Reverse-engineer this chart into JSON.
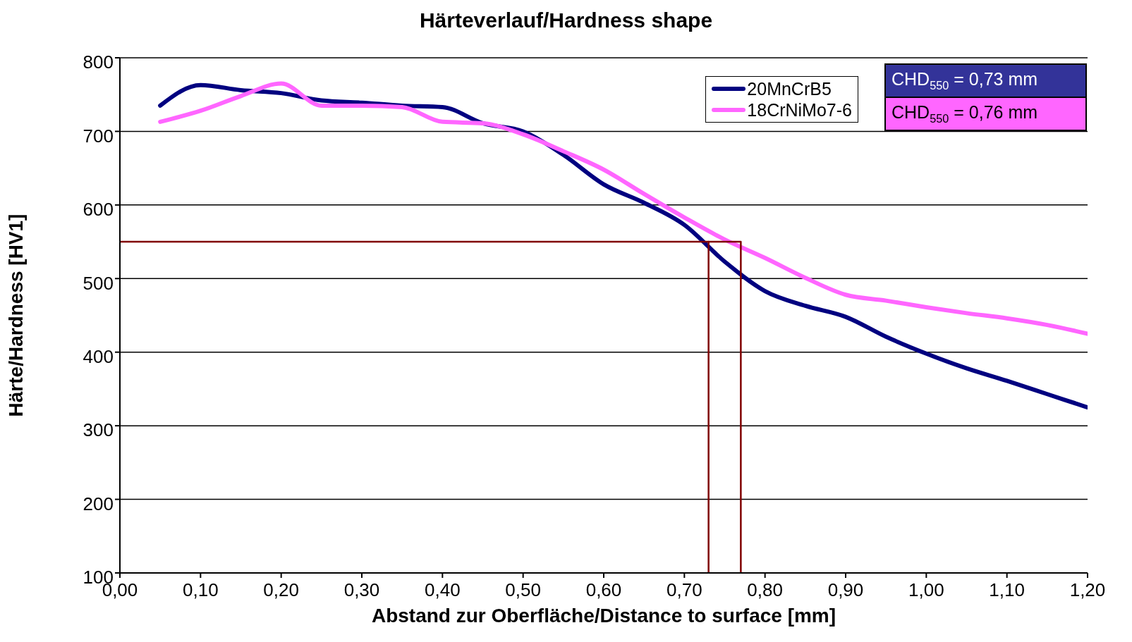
{
  "chart_data": {
    "type": "line",
    "title": "Härteverlauf/Hardness shape",
    "xlabel": "Abstand zur Oberfläche/Distance to surface [mm]",
    "ylabel": "Härte/Hardness [HV1]",
    "xlim": [
      0,
      1.2
    ],
    "xticks": [
      {
        "value": 0,
        "label": "0,00"
      },
      {
        "value": 0.1,
        "label": "0,10"
      },
      {
        "value": 0.2,
        "label": "0,20"
      },
      {
        "value": 0.3,
        "label": "0,30"
      },
      {
        "value": 0.4,
        "label": "0,40"
      },
      {
        "value": 0.5,
        "label": "0,50"
      },
      {
        "value": 0.6,
        "label": "0,60"
      },
      {
        "value": 0.7,
        "label": "0,70"
      },
      {
        "value": 0.8,
        "label": "0,80"
      },
      {
        "value": 0.9,
        "label": "0,90"
      },
      {
        "value": 1,
        "label": "1,00"
      },
      {
        "value": 1.1,
        "label": "1,10"
      },
      {
        "value": 1.2,
        "label": "1,20"
      }
    ],
    "ylim": [
      100,
      800
    ],
    "yticks": [
      100,
      200,
      300,
      400,
      500,
      600,
      700,
      800
    ],
    "grid": "y",
    "legend": "top right",
    "line_style": "solid",
    "marker": "none",
    "x": [
      0.05,
      0.1,
      0.15,
      0.2,
      0.25,
      0.3,
      0.35,
      0.4,
      0.45,
      0.5,
      0.55,
      0.6,
      0.65,
      0.7,
      0.75,
      0.8,
      0.85,
      0.9,
      0.95,
      1,
      1.05,
      1.1,
      1.15,
      1.2
    ],
    "series": [
      {
        "name": "20MnCrB5",
        "color": "#000080",
        "values": [
          735,
          763,
          756,
          752,
          742,
          739,
          735,
          733,
          711,
          700,
          668,
          628,
          603,
          573,
          523,
          483,
          463,
          448,
          421,
          398,
          378,
          361,
          343,
          325
        ]
      },
      {
        "name": "18CrNiMo7-6",
        "color": "#ff66ff",
        "values": [
          713,
          728,
          748,
          765,
          735,
          735,
          733,
          713,
          711,
          696,
          673,
          648,
          615,
          583,
          553,
          528,
          501,
          478,
          470,
          461,
          453,
          446,
          437,
          425
        ]
      },
      {
        "type": "line",
        "color": "#800000",
        "x": [
          0,
          0.73,
          0.73
        ],
        "values": [
          550,
          550,
          100
        ]
      },
      {
        "type": "line",
        "color": "#800000",
        "x": [
          0.73,
          0.77,
          0.77
        ],
        "values": [
          550,
          550,
          100
        ]
      }
    ],
    "annotations": [
      "CHD$_{550}$ = 0,73 mm",
      "CHD$_{550}$ = 0,76 mm"
    ]
  }
}
